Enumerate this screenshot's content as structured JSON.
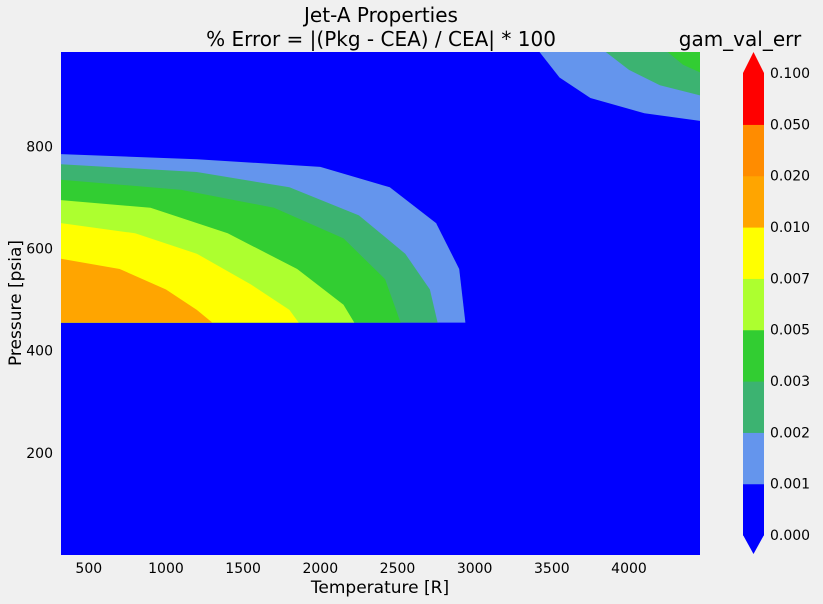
{
  "chart_data": {
    "type": "contour",
    "title": "Jet-A Properties",
    "subtitle": "% Error = |(Pkg - CEA) / CEA| * 100",
    "xlabel": "Temperature [R]",
    "ylabel": "Pressure [psia]",
    "xlim": [
      320,
      4460
    ],
    "ylim": [
      0,
      985
    ],
    "x_ticks": [
      500,
      1000,
      1500,
      2000,
      2500,
      3000,
      3500,
      4000
    ],
    "y_ticks": [
      200,
      400,
      600,
      800
    ],
    "colorbar": {
      "title": "gam_val_err",
      "levels": [
        "0.000",
        "0.001",
        "0.002",
        "0.003",
        "0.005",
        "0.007",
        "0.010",
        "0.020",
        "0.050",
        "0.100"
      ],
      "colors": [
        "#0000ff",
        "#6495ed",
        "#3cb371",
        "#32cd32",
        "#adff2f",
        "#ffff00",
        "#ffa500",
        "#ff8c00",
        "#ff0000"
      ],
      "extend": "both",
      "extend_low_color": "#0000ff",
      "extend_high_color": "#ff0000"
    },
    "regions": [
      {
        "level_min": 0.001,
        "boundary": [
          [
            320,
            785
          ],
          [
            1200,
            775
          ],
          [
            2000,
            760
          ],
          [
            2450,
            720
          ],
          [
            2750,
            650
          ],
          [
            2900,
            560
          ],
          [
            2940,
            455
          ],
          [
            320,
            455
          ]
        ]
      },
      {
        "level_min": 0.002,
        "boundary": [
          [
            320,
            765
          ],
          [
            1200,
            750
          ],
          [
            1800,
            720
          ],
          [
            2250,
            665
          ],
          [
            2550,
            590
          ],
          [
            2710,
            520
          ],
          [
            2760,
            455
          ],
          [
            320,
            455
          ]
        ]
      },
      {
        "level_min": 0.003,
        "boundary": [
          [
            320,
            735
          ],
          [
            1100,
            715
          ],
          [
            1700,
            680
          ],
          [
            2150,
            620
          ],
          [
            2420,
            540
          ],
          [
            2520,
            455
          ],
          [
            320,
            455
          ]
        ]
      },
      {
        "level_min": 0.005,
        "boundary": [
          [
            320,
            695
          ],
          [
            900,
            680
          ],
          [
            1400,
            630
          ],
          [
            1850,
            560
          ],
          [
            2150,
            490
          ],
          [
            2220,
            455
          ],
          [
            320,
            455
          ]
        ]
      },
      {
        "level_min": 0.007,
        "boundary": [
          [
            320,
            650
          ],
          [
            800,
            630
          ],
          [
            1200,
            590
          ],
          [
            1550,
            530
          ],
          [
            1800,
            480
          ],
          [
            1860,
            455
          ],
          [
            320,
            455
          ]
        ]
      },
      {
        "level_min": 0.01,
        "boundary": [
          [
            320,
            580
          ],
          [
            700,
            560
          ],
          [
            1000,
            520
          ],
          [
            1200,
            480
          ],
          [
            1300,
            455
          ],
          [
            320,
            455
          ]
        ]
      },
      {
        "level_min": 0.001,
        "boundary": [
          [
            3420,
            985
          ],
          [
            3550,
            935
          ],
          [
            3750,
            895
          ],
          [
            4100,
            865
          ],
          [
            4460,
            850
          ],
          [
            4460,
            985
          ]
        ]
      },
      {
        "level_min": 0.002,
        "boundary": [
          [
            3850,
            985
          ],
          [
            4000,
            950
          ],
          [
            4200,
            920
          ],
          [
            4460,
            900
          ],
          [
            4460,
            985
          ]
        ]
      },
      {
        "level_min": 0.003,
        "boundary": [
          [
            4250,
            985
          ],
          [
            4350,
            960
          ],
          [
            4460,
            945
          ],
          [
            4460,
            985
          ]
        ]
      }
    ]
  }
}
